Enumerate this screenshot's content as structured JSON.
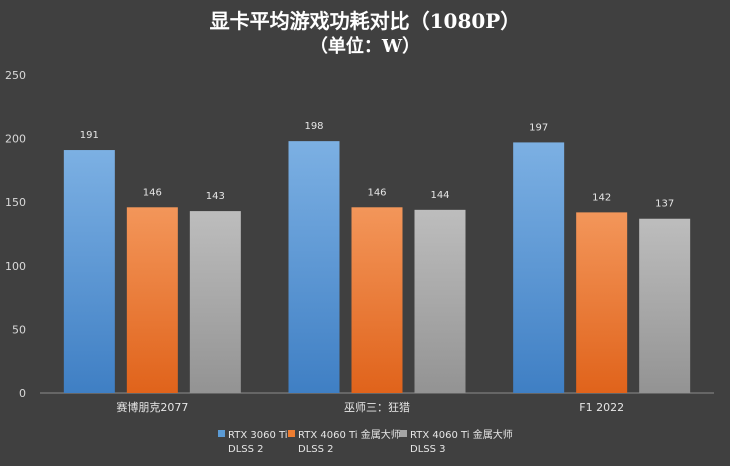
{
  "chart_data": {
    "type": "bar",
    "title": "显卡平均游戏功耗对比（1080P）",
    "subtitle": "（单位：W）",
    "categories": [
      "赛博朋克2077",
      "巫师三：狂猎",
      "F1 2022"
    ],
    "series": [
      {
        "name": "RTX 3060 Ti\nDLSS 2",
        "values": [
          191,
          198,
          197
        ],
        "color": "#5b9bd5"
      },
      {
        "name": "RTX 4060 Ti 金属大师\nDLSS 2",
        "values": [
          146,
          146,
          142
        ],
        "color": "#ed7d31"
      },
      {
        "name": "RTX 4060 Ti 金属大师\nDLSS 3",
        "values": [
          143,
          144,
          137
        ],
        "color": "#a5a5a5"
      }
    ],
    "ylim": [
      0,
      250
    ],
    "yticks": [
      0,
      50,
      100,
      150,
      200,
      250
    ],
    "grid": false,
    "legend": "bottom",
    "background": "#404040"
  }
}
